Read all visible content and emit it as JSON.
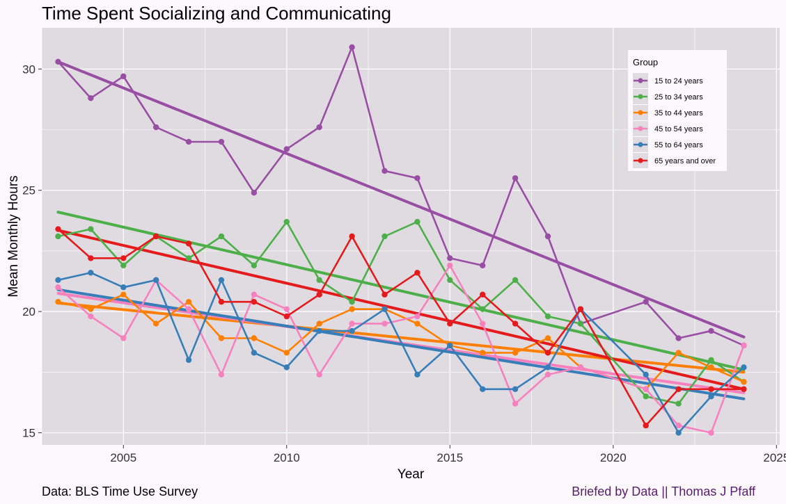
{
  "title": "Time Spent Socializing and Communicating",
  "source": "Data: BLS Time Use Survey",
  "credit": "Briefed by Data || Thomas J Pfaff",
  "chart_data": {
    "type": "line",
    "xlabel": "Year",
    "ylabel": "Mean Monthly Hours",
    "xlim": [
      2002.5,
      2025.1
    ],
    "ylim": [
      14.5,
      31.7
    ],
    "xticks": [
      2005,
      2010,
      2015,
      2020,
      2025
    ],
    "yticks": [
      15,
      20,
      25,
      30
    ],
    "grid": true,
    "legend_title": "Group",
    "legend_position": "top-right",
    "trend_lines": true,
    "x": [
      2003,
      2004,
      2005,
      2006,
      2007,
      2008,
      2009,
      2010,
      2011,
      2012,
      2013,
      2014,
      2015,
      2016,
      2017,
      2018,
      2019,
      2021,
      2022,
      2023,
      2024
    ],
    "series": [
      {
        "name": "15 to 24 years",
        "color": "#984ea3",
        "values": [
          30.3,
          28.8,
          29.7,
          27.6,
          27.0,
          27.0,
          24.9,
          26.7,
          27.6,
          30.9,
          25.8,
          25.5,
          22.2,
          21.9,
          25.5,
          23.1,
          19.5,
          20.4,
          18.9,
          19.2,
          18.6
        ],
        "trend": [
          30.3,
          18.95
        ]
      },
      {
        "name": "25 to 34 years",
        "color": "#4daf4a",
        "values": [
          23.1,
          23.4,
          21.9,
          23.1,
          22.2,
          23.1,
          21.9,
          23.7,
          21.3,
          20.4,
          23.1,
          23.7,
          21.3,
          20.1,
          21.3,
          19.8,
          19.5,
          16.5,
          16.2,
          18.0,
          17.1
        ],
        "trend": [
          24.1,
          17.6
        ]
      },
      {
        "name": "35 to 44 years",
        "color": "#ff7f00",
        "values": [
          20.4,
          20.1,
          20.7,
          19.5,
          20.4,
          18.9,
          18.9,
          18.3,
          19.5,
          20.1,
          20.1,
          19.5,
          18.6,
          18.3,
          18.3,
          18.9,
          17.7,
          16.8,
          18.3,
          17.7,
          17.1
        ],
        "trend": [
          20.35,
          17.5
        ]
      },
      {
        "name": "45 to 54 years",
        "color": "#f781bf",
        "values": [
          21.0,
          19.8,
          18.9,
          21.3,
          20.1,
          17.4,
          20.7,
          20.1,
          17.4,
          19.5,
          19.5,
          19.8,
          21.9,
          19.5,
          16.2,
          17.4,
          17.7,
          16.8,
          15.3,
          15.0,
          18.6
        ],
        "trend": [
          20.75,
          16.65
        ]
      },
      {
        "name": "55 to 64 years",
        "color": "#377eb8",
        "values": [
          21.3,
          21.6,
          21.0,
          21.3,
          18.0,
          21.3,
          18.3,
          17.7,
          19.2,
          19.2,
          20.1,
          17.4,
          18.6,
          16.8,
          16.8,
          17.7,
          20.1,
          17.4,
          15.0,
          16.5,
          17.7
        ],
        "trend": [
          20.9,
          16.4
        ]
      },
      {
        "name": "65 years and over",
        "color": "#e41a1c",
        "values": [
          23.4,
          22.2,
          22.2,
          23.1,
          22.8,
          20.4,
          20.4,
          19.8,
          20.7,
          23.1,
          20.7,
          21.6,
          19.5,
          20.7,
          19.5,
          18.3,
          20.1,
          15.3,
          16.8,
          16.8,
          16.8
        ],
        "trend": [
          23.35,
          16.8
        ]
      }
    ]
  }
}
